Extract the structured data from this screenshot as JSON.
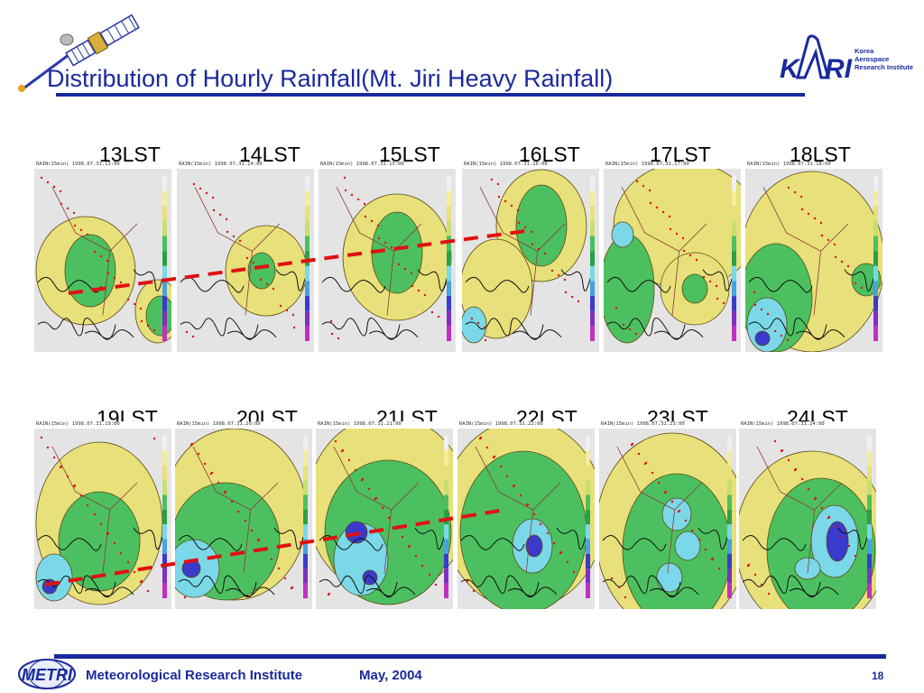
{
  "slide": {
    "title": "Distribution of Hourly Rainfall(Mt. Jiri Heavy Rainfall)",
    "logo_text": "KARI",
    "logo_subtext": "Korea\nAerospace\nResearch Institute",
    "panel_header_prefix": "RAIN(15min) 1998.07.31.",
    "row1": [
      {
        "label": "13LST",
        "stamp": "13:00"
      },
      {
        "label": "14LST",
        "stamp": "14:00"
      },
      {
        "label": "15LST",
        "stamp": "15:00"
      },
      {
        "label": "16LST",
        "stamp": "16:00"
      },
      {
        "label": "17LST",
        "stamp": "17:00"
      },
      {
        "label": "18LST",
        "stamp": "18:00"
      }
    ],
    "row2": [
      {
        "label": "19LST",
        "stamp": "19:00"
      },
      {
        "label": "20LST",
        "stamp": "20:00"
      },
      {
        "label": "21LST",
        "stamp": "21:00"
      },
      {
        "label": "22LST",
        "stamp": "22:00"
      },
      {
        "label": "23LST",
        "stamp": "23:00"
      },
      {
        "label": "24LST",
        "stamp": "24:00"
      }
    ],
    "footer": {
      "institute": "Meteorological Research Institute",
      "date": "May, 2004",
      "page": "18",
      "metri_logo": "METRI"
    },
    "colors": {
      "title": "#1a2a9c",
      "dash": "#e01010",
      "rain_light": "#e8e07a",
      "rain_mid": "#4cc060",
      "rain_heavy": "#7ad8e8",
      "rain_max": "#3a3acc"
    }
  }
}
